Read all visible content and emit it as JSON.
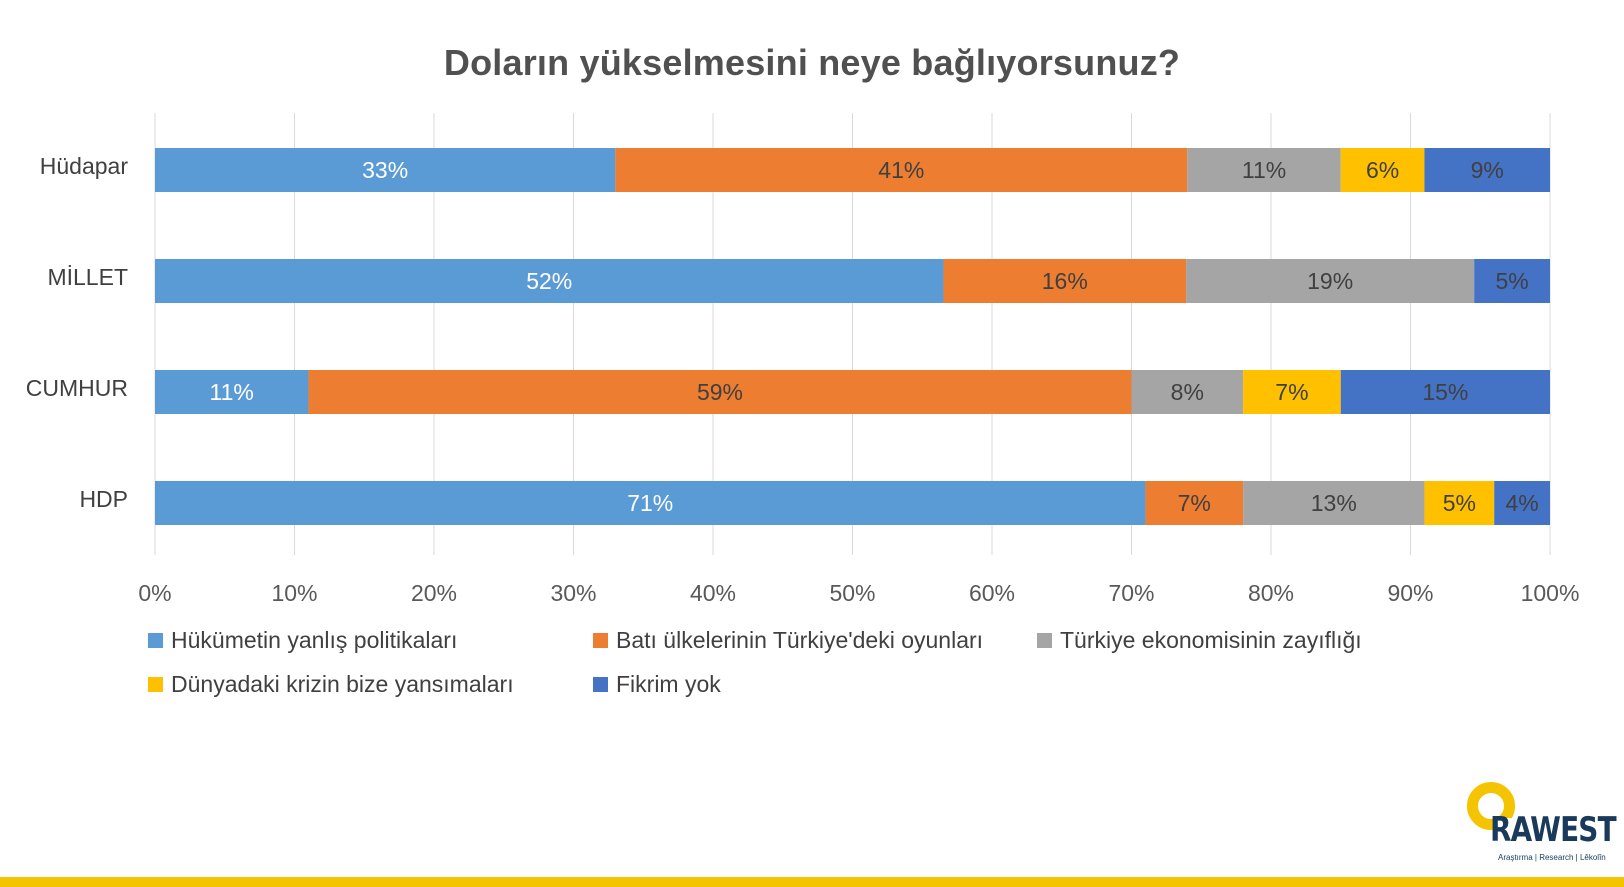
{
  "chart_data": {
    "type": "bar",
    "orientation": "horizontal",
    "stacked": "percent",
    "title": "Doların yükselmesini neye bağlıyorsunuz?",
    "categories": [
      "Hüdapar",
      "MİLLET",
      "CUMHUR",
      "HDP"
    ],
    "series": [
      {
        "name": "Hükümetin yanlış politikaları",
        "color": "#5b9bd5",
        "values": [
          33,
          52,
          11,
          71
        ]
      },
      {
        "name": "Batı ülkelerinin Türkiye'deki oyunları",
        "color": "#ed7d31",
        "values": [
          41,
          16,
          59,
          7
        ]
      },
      {
        "name": "Türkiye ekonomisinin zayıflığı",
        "color": "#a5a5a5",
        "values": [
          11,
          19,
          8,
          13
        ]
      },
      {
        "name": "Dünyadaki krizin bize yansımaları",
        "color": "#ffc000",
        "values": [
          6,
          null,
          7,
          5
        ]
      },
      {
        "name": "Fikrim yok",
        "color": "#4472c4",
        "values": [
          9,
          5,
          15,
          4
        ]
      }
    ],
    "xlim": [
      0,
      100
    ],
    "x_ticks": [
      "0%",
      "10%",
      "20%",
      "30%",
      "40%",
      "50%",
      "60%",
      "70%",
      "80%",
      "90%",
      "100%"
    ],
    "grid": true,
    "legend_position": "bottom-left",
    "data_label_colors": {
      "light": "#ffffff",
      "dark": "#404040"
    }
  },
  "logo": {
    "name": "RAWEST",
    "tagline": "Araştırma | Research | Lêkolîn",
    "ring_color": "#f5c400",
    "text_color": "#1a3a5c"
  },
  "bottom_bar_color": "#f5c400"
}
